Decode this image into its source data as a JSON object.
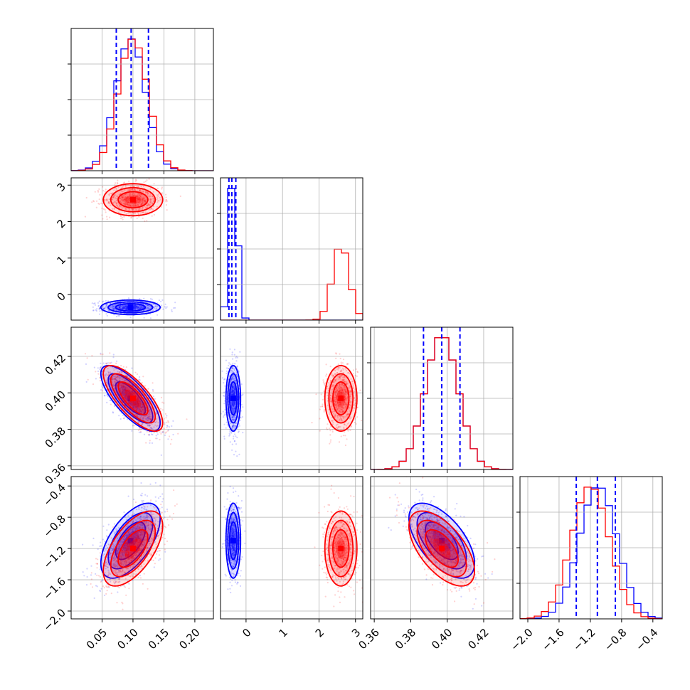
{
  "colors": {
    "series_a": "#0000ff",
    "series_b": "#ff0000",
    "grid": "#b0b0b0",
    "frame": "#000000"
  },
  "chart_data": {
    "type": "corner",
    "parameters": [
      {
        "range": [
          0.0,
          0.23
        ],
        "ticks": [
          0.05,
          0.1,
          0.15,
          0.2
        ],
        "tick_labels": [
          "0.05",
          "0.10",
          "0.15",
          "0.20"
        ]
      },
      {
        "range": [
          -0.7,
          3.2
        ],
        "ticks": [
          0,
          1,
          2,
          3
        ],
        "tick_labels": [
          "0",
          "1",
          "2",
          "3"
        ]
      },
      {
        "range": [
          0.358,
          0.436
        ],
        "ticks": [
          0.36,
          0.38,
          0.4,
          0.42
        ],
        "tick_labels": [
          "0.36",
          "0.38",
          "0.40",
          "0.42"
        ]
      },
      {
        "range": [
          -2.1,
          -0.28
        ],
        "ticks": [
          -2.0,
          -1.6,
          -1.2,
          -0.8,
          -0.4
        ],
        "tick_labels": [
          "−2.0",
          "−1.6",
          "−1.2",
          "−0.8",
          "−0.4"
        ]
      }
    ],
    "series": [
      {
        "color": "#0000ff",
        "means": [
          0.096,
          -0.35,
          0.397,
          -1.1
        ],
        "sds": [
          0.024,
          0.1,
          0.009,
          0.24
        ],
        "corr": [
          [
            1,
            0,
            -0.75,
            0.6
          ],
          [
            0,
            1,
            0,
            0
          ],
          [
            -0.75,
            0,
            1,
            -0.6
          ],
          [
            0.6,
            0,
            -0.6,
            1
          ]
        ],
        "quantile_lines": [
          [
            0.073,
            0.097,
            0.125
          ],
          [
            -0.47,
            -0.39,
            -0.28
          ],
          [
            0.387,
            0.397,
            0.407
          ],
          [
            -1.38,
            -1.11,
            -0.88
          ]
        ]
      },
      {
        "color": "#ff0000",
        "means": [
          0.1,
          2.6,
          0.397,
          -1.2
        ],
        "sds": [
          0.024,
          0.22,
          0.009,
          0.24
        ],
        "corr": [
          [
            1,
            0,
            -0.75,
            0.6
          ],
          [
            0,
            1,
            0,
            0
          ],
          [
            -0.75,
            0,
            1,
            -0.6
          ],
          [
            0.6,
            0,
            -0.6,
            1
          ]
        ]
      }
    ],
    "grid": true,
    "histogram_bins": 20,
    "contour_levels": [
      0.39,
      0.86,
      1.0
    ]
  }
}
